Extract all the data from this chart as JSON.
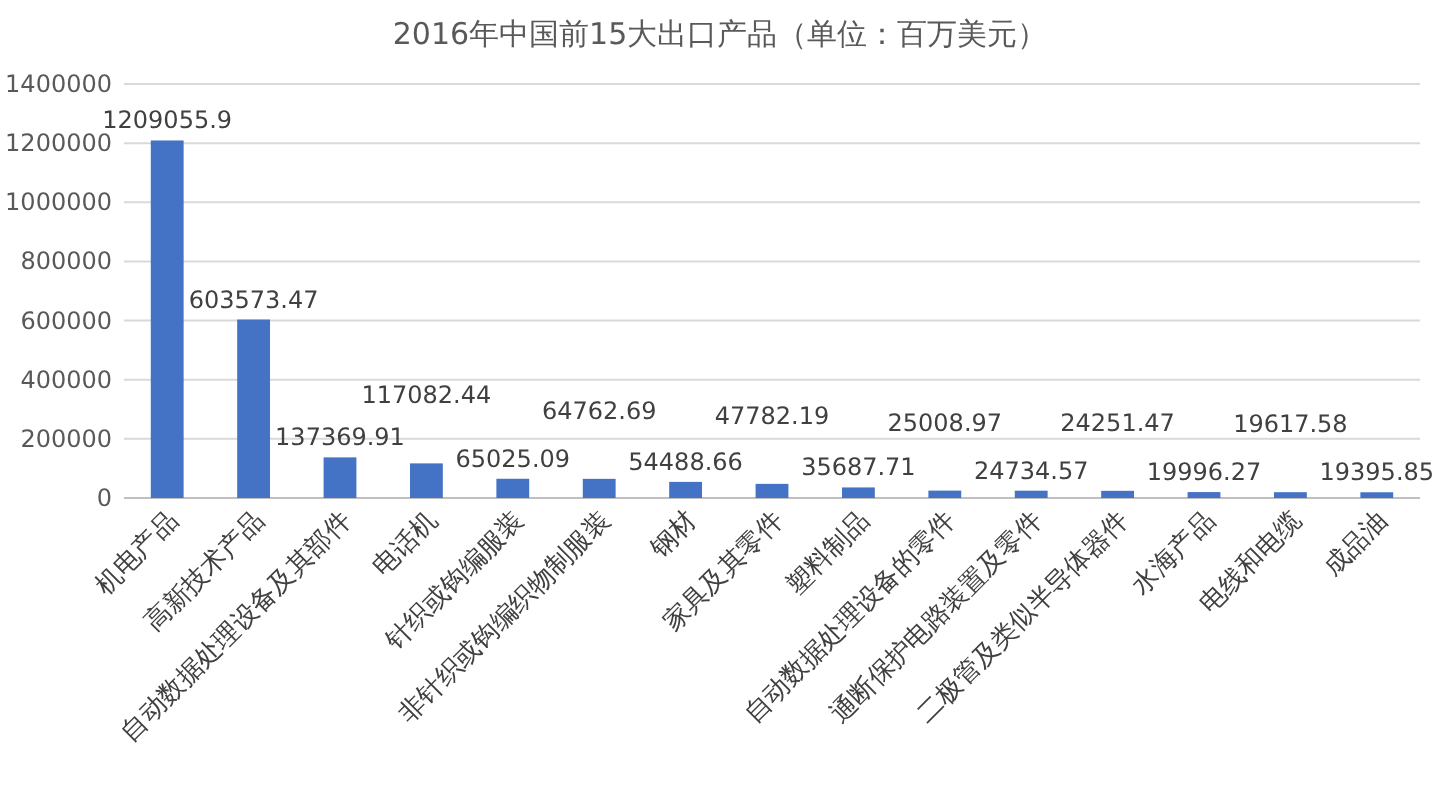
{
  "chart_data": {
    "type": "bar",
    "title": "2016年中国前15大出口产品（单位：百万美元）",
    "categories": [
      "机电产品",
      "高新技术产品",
      "自动数据处理设备及其部件",
      "电话机",
      "针织或钩编服装",
      "非针织或钩编织物制服装",
      "钢材",
      "家具及其零件",
      "塑料制品",
      "自动数据处理设备的零件",
      "通断保护电路装置及零件",
      "二极管及类似半导体器件",
      "水海产品",
      "电线和电缆",
      "成品油"
    ],
    "values": [
      1209055.9,
      603573.47,
      137369.91,
      117082.44,
      65025.09,
      64762.69,
      54488.66,
      47782.19,
      35687.71,
      25008.97,
      24734.57,
      24251.47,
      19996.27,
      19617.58,
      19395.85
    ],
    "color": "#4472c4",
    "ylim": [
      0,
      1400000
    ],
    "yticks": [
      0,
      200000,
      400000,
      600000,
      800000,
      1000000,
      1200000,
      1400000
    ],
    "grid": "y",
    "data_labels": true
  }
}
